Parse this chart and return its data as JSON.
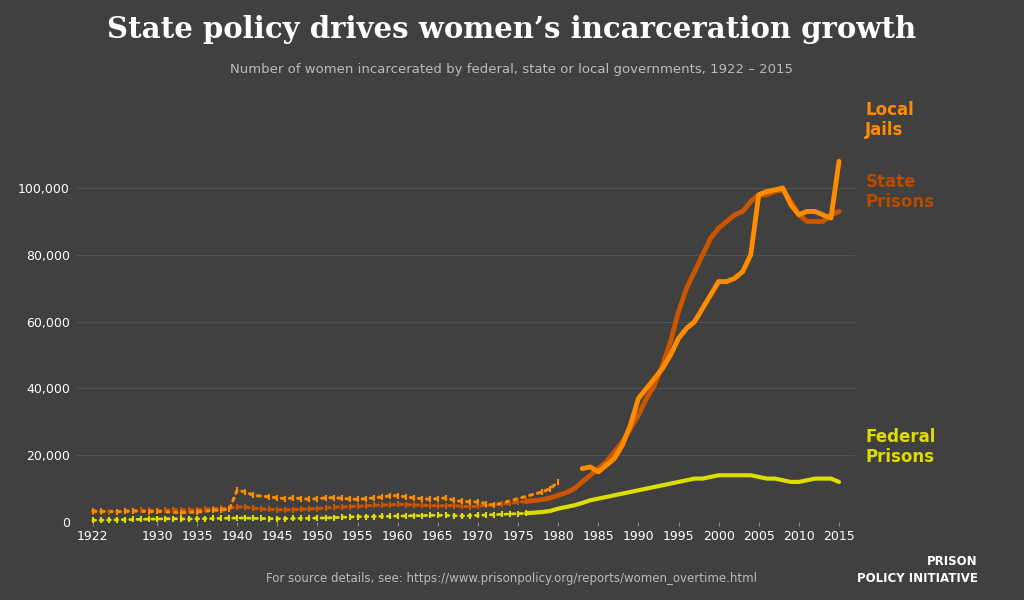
{
  "title": "State policy drives women’s incarceration growth",
  "subtitle": "Number of women incarcerated by federal, state or local governments, 1922 – 2015",
  "source_text": "For source details, see: https://www.prisonpolicy.org/reports/women_overtime.html",
  "background_color": "#404040",
  "title_color": "#ffffff",
  "subtitle_color": "#bbbbbb",
  "grid_color": "#666666",
  "label_color_local": "#FF8C00",
  "label_color_state": "#B84A00",
  "label_color_federal": "#DDDD00",
  "state_prisons_dotted": {
    "color": "#CC5500",
    "years": [
      1922,
      1923,
      1924,
      1925,
      1926,
      1927,
      1928,
      1929,
      1930,
      1931,
      1932,
      1933,
      1934,
      1935,
      1936,
      1937,
      1938,
      1939,
      1940,
      1941,
      1942,
      1943,
      1944,
      1945,
      1946,
      1947,
      1948,
      1949,
      1950,
      1951,
      1952,
      1953,
      1954,
      1955,
      1956,
      1957,
      1958,
      1959,
      1960,
      1961,
      1962,
      1963,
      1964,
      1965,
      1966,
      1967,
      1968,
      1969,
      1970,
      1971,
      1972,
      1973,
      1974,
      1975,
      1976
    ],
    "values": [
      3000,
      3100,
      3100,
      3100,
      3200,
      3400,
      3500,
      3500,
      3400,
      3500,
      3700,
      3600,
      3600,
      3700,
      3900,
      4000,
      4100,
      4200,
      4500,
      4500,
      4100,
      3900,
      3800,
      3700,
      3600,
      3700,
      3800,
      3900,
      4000,
      4200,
      4400,
      4500,
      4600,
      4700,
      4800,
      5000,
      5100,
      5100,
      5300,
      5200,
      5100,
      5000,
      4900,
      4800,
      4900,
      4900,
      4700,
      4600,
      4700,
      5000,
      5200,
      5400,
      5600,
      5900,
      6200
    ]
  },
  "state_prisons_solid": {
    "color": "#CC5500",
    "years": [
      1976,
      1977,
      1978,
      1979,
      1980,
      1981,
      1982,
      1983,
      1984,
      1985,
      1986,
      1987,
      1988,
      1989,
      1990,
      1991,
      1992,
      1993,
      1994,
      1995,
      1996,
      1997,
      1998,
      1999,
      2000,
      2001,
      2002,
      2003,
      2004,
      2005,
      2006,
      2007,
      2008,
      2009,
      2010,
      2011,
      2012,
      2013,
      2014,
      2015
    ],
    "values": [
      6200,
      6400,
      6700,
      7200,
      8000,
      8800,
      10000,
      12000,
      14000,
      16000,
      18000,
      21000,
      24000,
      28000,
      32000,
      37000,
      41000,
      47000,
      54000,
      63000,
      70000,
      75000,
      80000,
      85000,
      88000,
      90000,
      92000,
      93000,
      96000,
      98000,
      98000,
      99000,
      99500,
      96000,
      92000,
      90000,
      90000,
      90000,
      92000,
      93000
    ]
  },
  "local_jails_dotted": {
    "color": "#FF8C00",
    "years": [
      1922,
      1923,
      1925,
      1926,
      1927,
      1929,
      1930,
      1933,
      1935,
      1937,
      1938,
      1939,
      1940,
      1941,
      1942,
      1944,
      1945,
      1946,
      1947,
      1948,
      1949,
      1950,
      1951,
      1952,
      1953,
      1954,
      1955,
      1956,
      1957,
      1958,
      1959,
      1960,
      1961,
      1962,
      1963,
      1964,
      1965,
      1966,
      1967,
      1968,
      1969,
      1970,
      1971,
      1972,
      1978,
      1979,
      1980
    ],
    "values": [
      3300,
      3200,
      3100,
      3200,
      3300,
      3100,
      3200,
      2800,
      3000,
      3500,
      3600,
      3800,
      9500,
      9000,
      8000,
      7500,
      7200,
      7000,
      7200,
      7000,
      6800,
      7000,
      7200,
      7300,
      7100,
      6900,
      6800,
      7000,
      7200,
      7500,
      7800,
      7900,
      7500,
      7200,
      7000,
      6800,
      7000,
      7200,
      6500,
      6200,
      6000,
      6000,
      5500,
      5000,
      9000,
      10000,
      12000
    ]
  },
  "local_jails_solid": {
    "color": "#FF8C00",
    "years": [
      1983,
      1984,
      1985,
      1986,
      1987,
      1988,
      1989,
      1990,
      1991,
      1992,
      1993,
      1994,
      1995,
      1996,
      1997,
      1998,
      1999,
      2000,
      2001,
      2002,
      2003,
      2004,
      2005,
      2006,
      2007,
      2008,
      2009,
      2010,
      2011,
      2012,
      2013,
      2014,
      2015
    ],
    "values": [
      16000,
      16500,
      15000,
      17000,
      19000,
      23000,
      29000,
      37000,
      40000,
      43000,
      46000,
      50000,
      55000,
      58000,
      60000,
      64000,
      68000,
      72000,
      72000,
      73000,
      75000,
      80000,
      98000,
      99000,
      99500,
      100000,
      95000,
      92000,
      93000,
      93000,
      92000,
      91000,
      108000
    ]
  },
  "federal_prisons_dotted": {
    "color": "#DDDD00",
    "years": [
      1922,
      1923,
      1924,
      1925,
      1926,
      1927,
      1928,
      1929,
      1930,
      1931,
      1932,
      1933,
      1934,
      1935,
      1936,
      1937,
      1938,
      1939,
      1940,
      1941,
      1942,
      1943,
      1944,
      1945,
      1946,
      1947,
      1948,
      1949,
      1950,
      1951,
      1952,
      1953,
      1954,
      1955,
      1956,
      1957,
      1958,
      1959,
      1960,
      1961,
      1962,
      1963,
      1964,
      1965,
      1966,
      1967,
      1968,
      1969,
      1970,
      1971,
      1972,
      1973,
      1974,
      1975,
      1976
    ],
    "values": [
      500,
      550,
      600,
      650,
      700,
      750,
      800,
      850,
      900,
      950,
      1000,
      900,
      900,
      950,
      1000,
      1050,
      1100,
      1150,
      1200,
      1200,
      1100,
      1050,
      1000,
      950,
      1000,
      1050,
      1100,
      1100,
      1200,
      1200,
      1300,
      1400,
      1500,
      1600,
      1600,
      1600,
      1700,
      1700,
      1800,
      1800,
      1900,
      1900,
      2000,
      2000,
      2000,
      1900,
      1800,
      1900,
      2000,
      2100,
      2200,
      2300,
      2400,
      2500,
      2600
    ]
  },
  "federal_prisons_solid": {
    "color": "#DDDD00",
    "years": [
      1976,
      1977,
      1978,
      1979,
      1980,
      1981,
      1982,
      1983,
      1984,
      1985,
      1986,
      1987,
      1988,
      1989,
      1990,
      1991,
      1992,
      1993,
      1994,
      1995,
      1996,
      1997,
      1998,
      1999,
      2000,
      2001,
      2002,
      2003,
      2004,
      2005,
      2006,
      2007,
      2008,
      2009,
      2010,
      2011,
      2012,
      2013,
      2014,
      2015
    ],
    "values": [
      2600,
      2800,
      3000,
      3300,
      4000,
      4500,
      5000,
      5700,
      6500,
      7000,
      7500,
      8000,
      8500,
      9000,
      9500,
      10000,
      10500,
      11000,
      11500,
      12000,
      12500,
      13000,
      13000,
      13500,
      14000,
      14000,
      14000,
      14000,
      14000,
      13500,
      13000,
      13000,
      12500,
      12000,
      12000,
      12500,
      13000,
      13000,
      13000,
      12000
    ]
  },
  "ylim": [
    0,
    115000
  ],
  "xlim": [
    1920,
    2017
  ],
  "yticks": [
    0,
    20000,
    40000,
    60000,
    80000,
    100000
  ],
  "xticks": [
    1922,
    1930,
    1935,
    1940,
    1945,
    1950,
    1955,
    1960,
    1965,
    1970,
    1975,
    1980,
    1985,
    1990,
    1995,
    2000,
    2005,
    2010,
    2015
  ]
}
